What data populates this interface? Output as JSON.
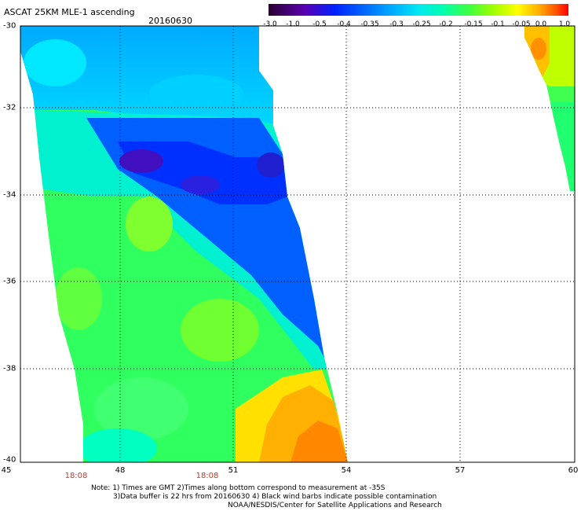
{
  "header": {
    "title": "ASCAT 25KM MLE-1 ascending",
    "date": "20160630"
  },
  "colorbar": {
    "labels": [
      "-3.0",
      "-1.0",
      "-0.5",
      "-0.4",
      "-0.35",
      "-0.3",
      "-0.25",
      "-0.2",
      "-0.15",
      "-0.1",
      "-0.05",
      "0.0",
      "1.0"
    ],
    "colors": [
      "#2a0030",
      "#5a00b0",
      "#0020ff",
      "#0070ff",
      "#00b0ff",
      "#00e8f0",
      "#00ffb0",
      "#40ff40",
      "#a0ff00",
      "#ffff00",
      "#ffb000",
      "#ff5000",
      "#ff0000"
    ]
  },
  "axes": {
    "lat_labels": [
      "-30",
      "-32",
      "-34",
      "-36",
      "-38",
      "-40"
    ],
    "lon_labels": [
      "45",
      "48",
      "51",
      "54",
      "57",
      "60"
    ],
    "time_labels": [
      "18:08",
      "18:08"
    ]
  },
  "notes": {
    "line1": "Note: 1) Times are GMT 2)Times along bottom correspond to measurement at -35S",
    "line2": "3)Data buffer is 22 hrs from 20160630 4) Black wind barbs indicate possible contamination",
    "line3": "NOAA/NESDIS/Center for Satellite Applications and Research"
  }
}
